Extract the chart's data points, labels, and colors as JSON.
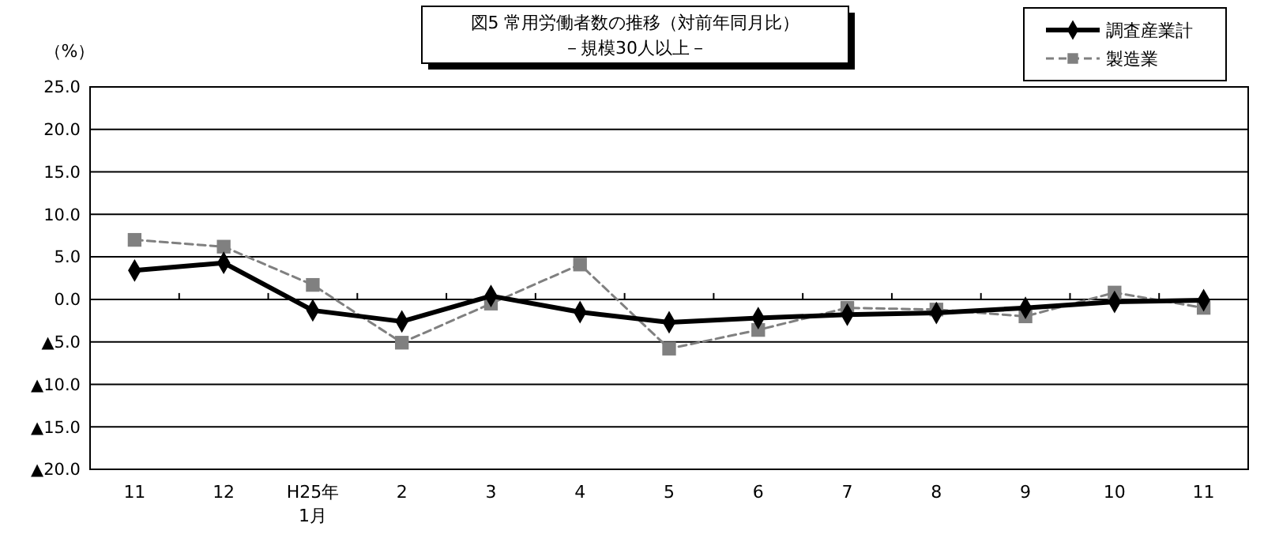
{
  "chart_data": {
    "type": "line",
    "title": "図5  常用労働者数の推移（対前年同月比）",
    "subtitle": "－規模30人以上－",
    "ylabel": "（%）",
    "categories": [
      "11",
      "12",
      "H25年\n1月",
      "2",
      "3",
      "4",
      "5",
      "6",
      "7",
      "8",
      "9",
      "10",
      "11"
    ],
    "series": [
      {
        "name": "調査産業計",
        "color": "#000000",
        "marker": "diamond",
        "line_style": "solid",
        "values": [
          3.4,
          4.3,
          -1.3,
          -2.6,
          0.4,
          -1.5,
          -2.7,
          -2.2,
          -1.8,
          -1.6,
          -1.0,
          -0.3,
          -0.1
        ]
      },
      {
        "name": "製造業",
        "color": "#808080",
        "marker": "square",
        "line_style": "dashed",
        "values": [
          7.0,
          6.2,
          1.7,
          -5.1,
          -0.5,
          4.1,
          -5.8,
          -3.6,
          -1.0,
          -1.2,
          -2.0,
          0.8,
          -1.0
        ]
      }
    ],
    "ylim": [
      -20,
      25
    ],
    "yticks": [
      {
        "value": -20,
        "label": "▲20.0"
      },
      {
        "value": -15,
        "label": "▲15.0"
      },
      {
        "value": -10,
        "label": "▲10.0"
      },
      {
        "value": -5,
        "label": "▲5.0"
      },
      {
        "value": 0,
        "label": "0.0"
      },
      {
        "value": 5,
        "label": "5.0"
      },
      {
        "value": 10,
        "label": "10.0"
      },
      {
        "value": 15,
        "label": "15.0"
      },
      {
        "value": 20,
        "label": "20.0"
      },
      {
        "value": 25,
        "label": "25.0"
      }
    ],
    "grid": "y",
    "legend": "top right"
  }
}
